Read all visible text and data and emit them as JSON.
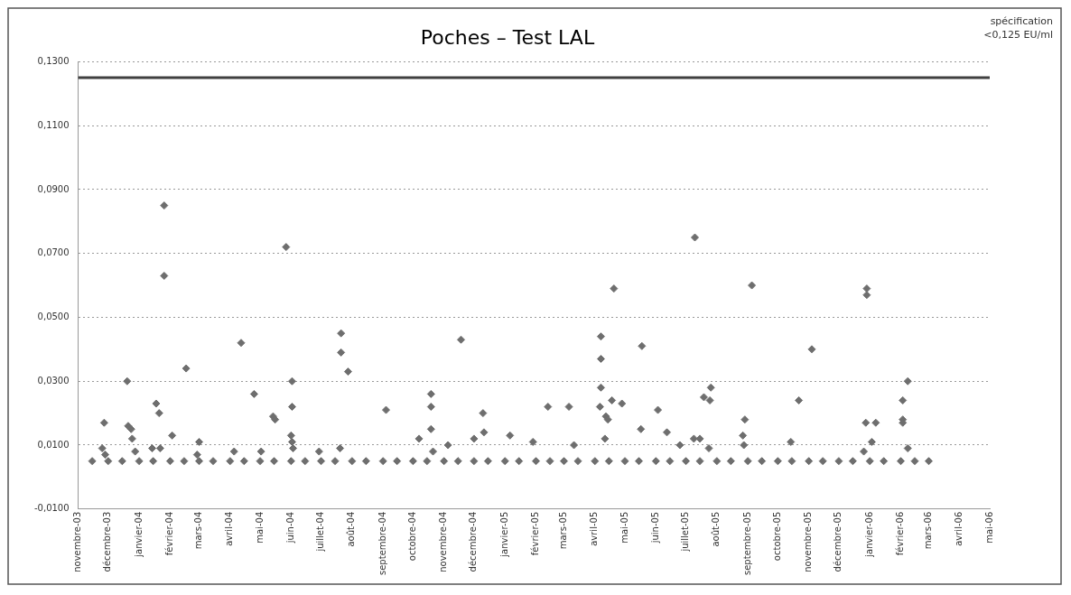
{
  "chart_data": {
    "type": "scatter",
    "title": "Poches – Test LAL",
    "xlim": [
      "2003-11-01",
      "2006-05-01"
    ],
    "xticks": [
      {
        "value": "2003-11-01",
        "label": "novembre-03"
      },
      {
        "value": "2003-12-01",
        "label": "décembre-03"
      },
      {
        "value": "2004-01-01",
        "label": "janvier-04"
      },
      {
        "value": "2004-02-01",
        "label": "février-04"
      },
      {
        "value": "2004-03-01",
        "label": "mars-04"
      },
      {
        "value": "2004-04-01",
        "label": "avril-04"
      },
      {
        "value": "2004-05-01",
        "label": "mai-04"
      },
      {
        "value": "2004-06-01",
        "label": "juin-04"
      },
      {
        "value": "2004-07-01",
        "label": "juillet-04"
      },
      {
        "value": "2004-08-01",
        "label": "août-04"
      },
      {
        "value": "2004-09-01",
        "label": "septembre-04"
      },
      {
        "value": "2004-10-01",
        "label": "octobre-04"
      },
      {
        "value": "2004-11-01",
        "label": "novembre-04"
      },
      {
        "value": "2004-12-01",
        "label": "décembre-04"
      },
      {
        "value": "2005-01-01",
        "label": "janvier-05"
      },
      {
        "value": "2005-02-01",
        "label": "février-05"
      },
      {
        "value": "2005-03-01",
        "label": "mars-05"
      },
      {
        "value": "2005-04-01",
        "label": "avril-05"
      },
      {
        "value": "2005-05-01",
        "label": "mai-05"
      },
      {
        "value": "2005-06-01",
        "label": "juin-05"
      },
      {
        "value": "2005-07-01",
        "label": "juillet-05"
      },
      {
        "value": "2005-08-01",
        "label": "août-05"
      },
      {
        "value": "2005-09-01",
        "label": "septembre-05"
      },
      {
        "value": "2005-10-01",
        "label": "octobre-05"
      },
      {
        "value": "2005-11-01",
        "label": "novembre-05"
      },
      {
        "value": "2005-12-01",
        "label": "décembre-05"
      },
      {
        "value": "2006-01-01",
        "label": "janvier-06"
      },
      {
        "value": "2006-02-01",
        "label": "février-06"
      },
      {
        "value": "2006-03-01",
        "label": "mars-06"
      },
      {
        "value": "2006-04-01",
        "label": "avril-06"
      },
      {
        "value": "2006-05-01",
        "label": "mai-06"
      }
    ],
    "ylim": [
      -0.01,
      0.13
    ],
    "yticks": [
      {
        "value": -0.01,
        "label": "-0,0100"
      },
      {
        "value": 0.01,
        "label": "0,0100"
      },
      {
        "value": 0.03,
        "label": "0,0300"
      },
      {
        "value": 0.05,
        "label": "0,0500"
      },
      {
        "value": 0.07,
        "label": "0,0700"
      },
      {
        "value": 0.09,
        "label": "0,0900"
      },
      {
        "value": 0.11,
        "label": "0,1100"
      },
      {
        "value": 0.13,
        "label": "0,1300"
      }
    ],
    "grid": "y",
    "marker": "diamond",
    "legend": false,
    "ref_lines": [
      {
        "axis": "y",
        "value": 0.125,
        "label": "spécification <0,125 EU/ml",
        "color": "#404040"
      }
    ],
    "series": [
      {
        "color": "#6e6e6e",
        "x": [
          "2003-11-27",
          "2003-11-25",
          "2003-11-28",
          "2003-12-20",
          "2003-12-21",
          "2003-12-24",
          "2003-12-25",
          "2003-12-28",
          "2004-01-18",
          "2004-01-21",
          "2004-01-26",
          "2004-01-26",
          "2004-01-14",
          "2004-01-22",
          "2004-02-03",
          "2004-02-17",
          "2004-03-01",
          "2004-02-28",
          "2004-04-05",
          "2004-04-12",
          "2004-04-25",
          "2004-05-02",
          "2004-05-14",
          "2004-05-16",
          "2004-05-27",
          "2004-06-02",
          "2004-06-02",
          "2004-06-01",
          "2004-06-02",
          "2004-06-03",
          "2004-06-29",
          "2004-07-21",
          "2004-07-21",
          "2004-07-28",
          "2004-07-20",
          "2004-09-04",
          "2004-10-07",
          "2004-10-19",
          "2004-10-19",
          "2004-10-19",
          "2004-10-21",
          "2004-11-05",
          "2004-11-18",
          "2004-12-01",
          "2004-12-10",
          "2004-12-11",
          "2005-01-06",
          "2005-01-29",
          "2005-02-13",
          "2005-03-06",
          "2005-03-11",
          "2005-04-06",
          "2005-04-07",
          "2005-04-07",
          "2005-04-07",
          "2005-04-11",
          "2005-04-12",
          "2005-04-14",
          "2005-04-18",
          "2005-04-20",
          "2005-04-28",
          "2005-05-17",
          "2005-05-18",
          "2005-06-03",
          "2005-06-12",
          "2005-06-25",
          "2005-07-09",
          "2005-07-10",
          "2005-07-15",
          "2005-07-19",
          "2005-07-25",
          "2005-07-26",
          "2005-07-24",
          "2005-08-27",
          "2005-08-28",
          "2005-08-29",
          "2005-09-05",
          "2005-10-14",
          "2005-10-22",
          "2005-11-04",
          "2005-12-28",
          "2005-12-29",
          "2005-12-29",
          "2005-12-26",
          "2006-01-03",
          "2006-01-07",
          "2006-02-03",
          "2006-02-03",
          "2006-02-03",
          "2006-02-08",
          "2006-02-08",
          "2003-11-15",
          "2003-12-01",
          "2003-12-15",
          "2004-01-01",
          "2004-01-15",
          "2004-02-01",
          "2004-02-15",
          "2004-03-01",
          "2004-03-15",
          "2004-04-01",
          "2004-04-15",
          "2004-05-01",
          "2004-05-15",
          "2004-06-01",
          "2004-06-15",
          "2004-07-01",
          "2004-07-15",
          "2004-08-01",
          "2004-08-15",
          "2004-09-01",
          "2004-09-15",
          "2004-10-01",
          "2004-10-15",
          "2004-11-01",
          "2004-11-15",
          "2004-12-01",
          "2004-12-15",
          "2005-01-01",
          "2005-01-15",
          "2005-02-01",
          "2005-02-15",
          "2005-03-01",
          "2005-03-15",
          "2005-04-01",
          "2005-04-15",
          "2005-05-01",
          "2005-05-15",
          "2005-06-01",
          "2005-06-15",
          "2005-07-01",
          "2005-07-15",
          "2005-08-01",
          "2005-08-15",
          "2005-09-01",
          "2005-09-15",
          "2005-10-01",
          "2005-10-15",
          "2005-11-01",
          "2005-11-15",
          "2005-12-01",
          "2005-12-15",
          "2006-01-01",
          "2006-01-15",
          "2006-02-01",
          "2006-02-15",
          "2006-03-01"
        ],
        "values": [
          0.017,
          0.009,
          0.007,
          0.03,
          0.016,
          0.015,
          0.012,
          0.008,
          0.023,
          0.02,
          0.085,
          0.063,
          0.009,
          0.009,
          0.013,
          0.034,
          0.011,
          0.007,
          0.008,
          0.042,
          0.026,
          0.008,
          0.019,
          0.018,
          0.072,
          0.03,
          0.022,
          0.013,
          0.011,
          0.009,
          0.008,
          0.045,
          0.039,
          0.033,
          0.009,
          0.021,
          0.012,
          0.026,
          0.022,
          0.015,
          0.008,
          0.01,
          0.043,
          0.012,
          0.02,
          0.014,
          0.013,
          0.011,
          0.022,
          0.022,
          0.01,
          0.022,
          0.044,
          0.037,
          0.028,
          0.012,
          0.019,
          0.018,
          0.024,
          0.059,
          0.023,
          0.015,
          0.041,
          0.021,
          0.014,
          0.01,
          0.012,
          0.075,
          0.012,
          0.025,
          0.024,
          0.028,
          0.009,
          0.013,
          0.01,
          0.018,
          0.06,
          0.011,
          0.024,
          0.04,
          0.017,
          0.059,
          0.057,
          0.008,
          0.011,
          0.017,
          0.024,
          0.018,
          0.017,
          0.03,
          0.009,
          0.005,
          0.005,
          0.005,
          0.005,
          0.005,
          0.005,
          0.005,
          0.005,
          0.005,
          0.005,
          0.005,
          0.005,
          0.005,
          0.005,
          0.005,
          0.005,
          0.005,
          0.005,
          0.005,
          0.005,
          0.005,
          0.005,
          0.005,
          0.005,
          0.005,
          0.005,
          0.005,
          0.005,
          0.005,
          0.005,
          0.005,
          0.005,
          0.005,
          0.005,
          0.005,
          0.005,
          0.005,
          0.005,
          0.005,
          0.005,
          0.005,
          0.005,
          0.005,
          0.005,
          0.005,
          0.005,
          0.005,
          0.005,
          0.005,
          0.005,
          0.005,
          0.005,
          0.005,
          0.005,
          0.005,
          0.005
        ]
      }
    ]
  }
}
